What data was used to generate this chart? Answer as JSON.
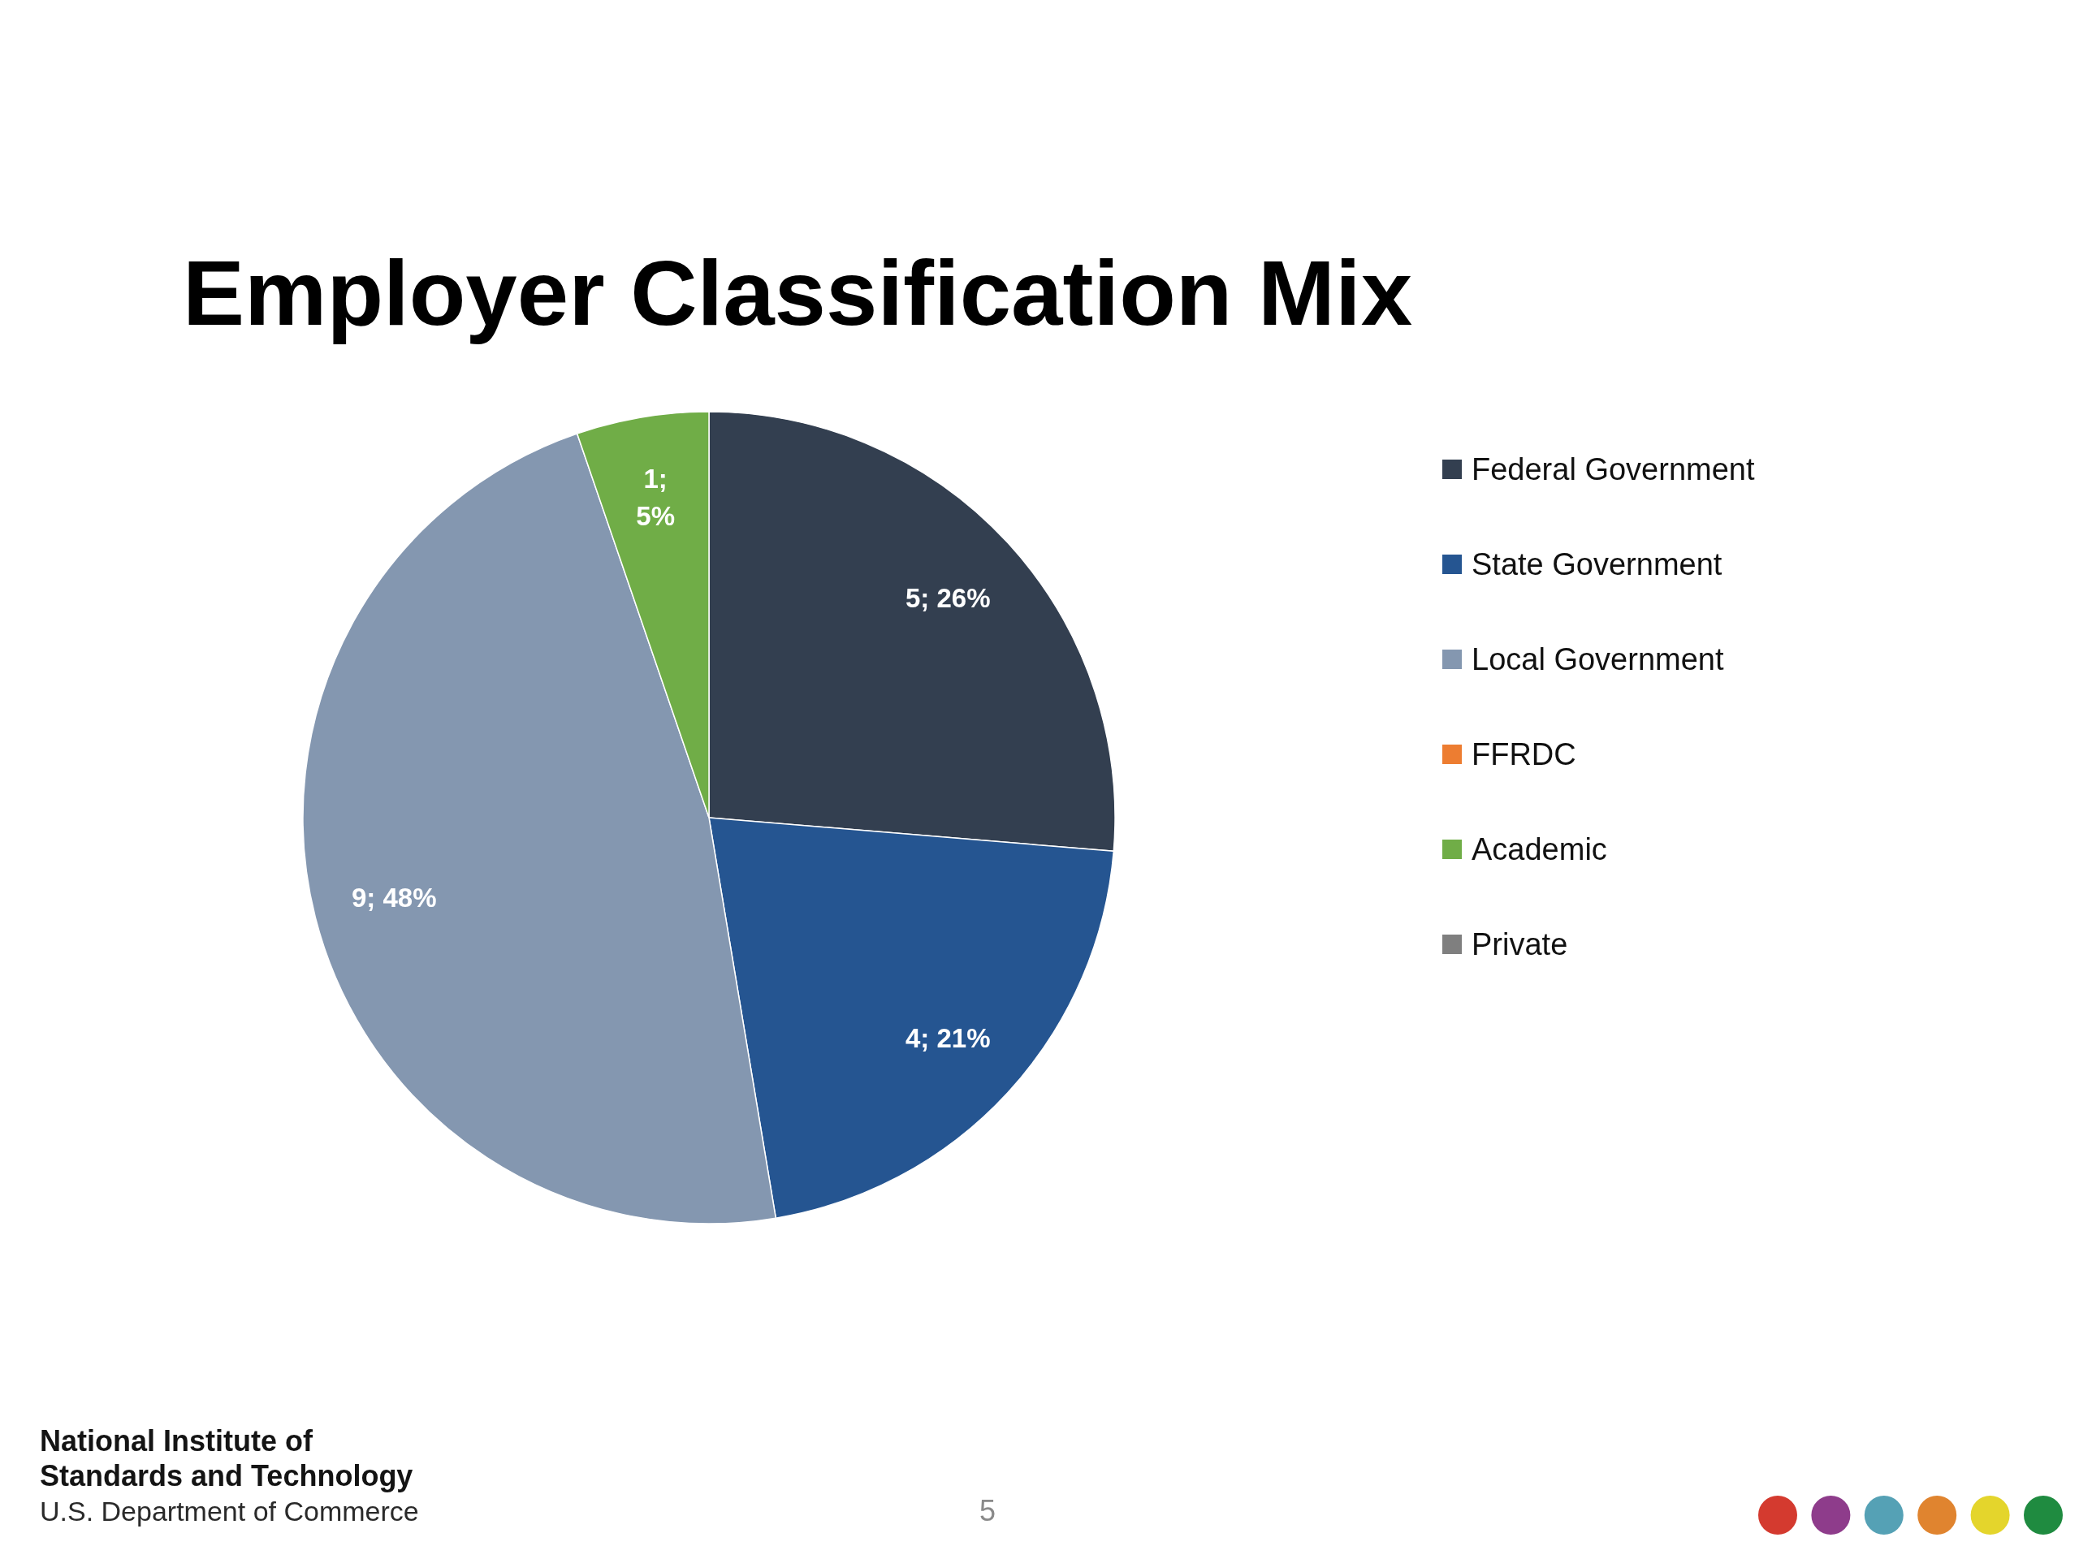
{
  "chart_data": {
    "type": "pie",
    "title": "Employer Classification Mix",
    "categories": [
      "Federal Government",
      "State Government",
      "Local Government",
      "FFRDC",
      "Academic",
      "Private"
    ],
    "values": [
      5,
      4,
      9,
      0,
      1,
      0
    ],
    "colors": [
      "#333f50",
      "#255591",
      "#8497b0",
      "#ed7d31",
      "#70ad47",
      "#7f7f7f"
    ],
    "value_labels": [
      "5; 26%",
      "4; 21%",
      "9; 48%",
      null,
      "1; 5%",
      null
    ],
    "legend": "right",
    "annotations": [
      "National Institute of Standards and Technology",
      "U.S. Department of Commerce",
      "5"
    ]
  }
}
